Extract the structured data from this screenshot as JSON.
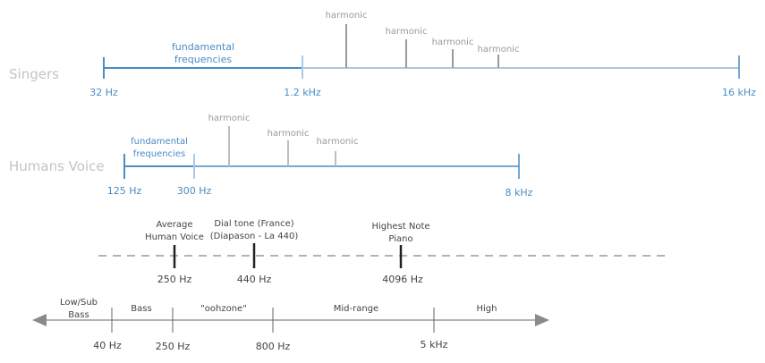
{
  "singers": {
    "label": "Singers",
    "fundamental_label_line1": "fundamental",
    "fundamental_label_line2": "frequencies",
    "ticks": [
      "32 Hz",
      "1.2 kHz",
      "16 kHz"
    ],
    "harmonics": [
      "harmonic",
      "harmonic",
      "harmonic",
      "harmonic"
    ]
  },
  "voice": {
    "label": "Humans Voice",
    "fundamental_label_line1": "fundamental",
    "fundamental_label_line2": "frequencies",
    "ticks": [
      "125 Hz",
      "300 Hz",
      "8 kHz"
    ],
    "harmonics": [
      "harmonic",
      "harmonic",
      "harmonic"
    ]
  },
  "markers": [
    {
      "line1": "Average",
      "line2": "Human Voice",
      "value": "250 Hz"
    },
    {
      "line1": "Dial tone (France)",
      "line2": "(Diapason - La 440)",
      "value": "440 Hz"
    },
    {
      "line1": "Highest Note",
      "line2": "Piano",
      "value": "4096 Hz"
    }
  ],
  "bands": {
    "names": [
      {
        "line1": "Low/Sub",
        "line2": "Bass"
      },
      {
        "line1": "Bass",
        "line2": ""
      },
      {
        "line1": "\"oohzone\"",
        "line2": ""
      },
      {
        "line1": "Mid-range",
        "line2": ""
      },
      {
        "line1": "High",
        "line2": ""
      }
    ],
    "ticks": [
      "40 Hz",
      "250 Hz",
      "800 Hz",
      "5 kHz"
    ]
  },
  "colors": {
    "blue": "#4a8cc4",
    "light_blue": "#a9c9e4",
    "grey": "#9a9a9a",
    "dark": "#333333"
  }
}
